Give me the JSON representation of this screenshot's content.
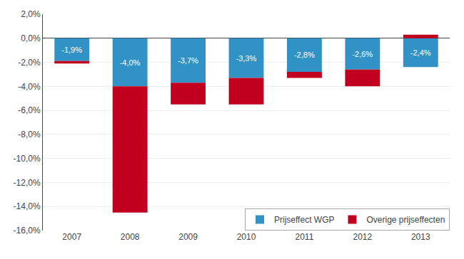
{
  "chart_data": {
    "type": "bar",
    "stacked": true,
    "categories": [
      "2007",
      "2008",
      "2009",
      "2010",
      "2011",
      "2012",
      "2013"
    ],
    "series": [
      {
        "name": "Prijseffect WGP",
        "color": "#3192C5",
        "values": [
          -1.9,
          -4.0,
          -3.7,
          -3.3,
          -2.8,
          -2.6,
          -2.4
        ],
        "value_labels": [
          "-1,9%",
          "-4,0%",
          "-3,7%",
          "-3,3%",
          "-2,8%",
          "-2,6%",
          "-2,4%"
        ]
      },
      {
        "name": "Overige prijseffecten",
        "color": "#C0001E",
        "values": [
          -0.2,
          -10.5,
          -1.8,
          -2.2,
          -0.5,
          -1.4,
          0.3
        ]
      }
    ],
    "data_labels": true,
    "ylim": [
      -16.0,
      2.0
    ],
    "yticks": [
      {
        "value": 2.0,
        "label": "2,0%"
      },
      {
        "value": 0.0,
        "label": "0,0%"
      },
      {
        "value": -2.0,
        "label": "-2,0%"
      },
      {
        "value": -4.0,
        "label": "-4,0%"
      },
      {
        "value": -6.0,
        "label": "-6,0%"
      },
      {
        "value": -8.0,
        "label": "-8,0%"
      },
      {
        "value": -10.0,
        "label": "-10,0%"
      },
      {
        "value": -12.0,
        "label": "-12,0%"
      },
      {
        "value": -14.0,
        "label": "-14,0%"
      },
      {
        "value": -16.0,
        "label": "-16,0%"
      }
    ],
    "grid": true,
    "legend": "lower right"
  }
}
